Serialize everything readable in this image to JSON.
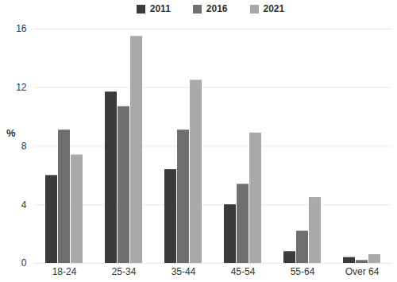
{
  "chart_data": {
    "type": "bar",
    "y_label": "%",
    "categories": [
      "18-24",
      "25-34",
      "35-44",
      "45-54",
      "55-64",
      "Over 64"
    ],
    "series": [
      {
        "name": "2011",
        "color": "#3b3b3b",
        "values": [
          6.0,
          11.7,
          6.4,
          4.0,
          0.8,
          0.4
        ]
      },
      {
        "name": "2016",
        "color": "#6f6f6f",
        "values": [
          9.1,
          10.7,
          9.1,
          5.4,
          2.2,
          0.2
        ]
      },
      {
        "name": "2021",
        "color": "#a9a9a9",
        "values": [
          7.4,
          15.5,
          12.5,
          8.9,
          4.5,
          0.6
        ]
      }
    ],
    "ylim": [
      0,
      16
    ],
    "yticks": [
      0,
      4,
      8,
      12,
      16
    ],
    "grid": true,
    "legend": "top"
  }
}
